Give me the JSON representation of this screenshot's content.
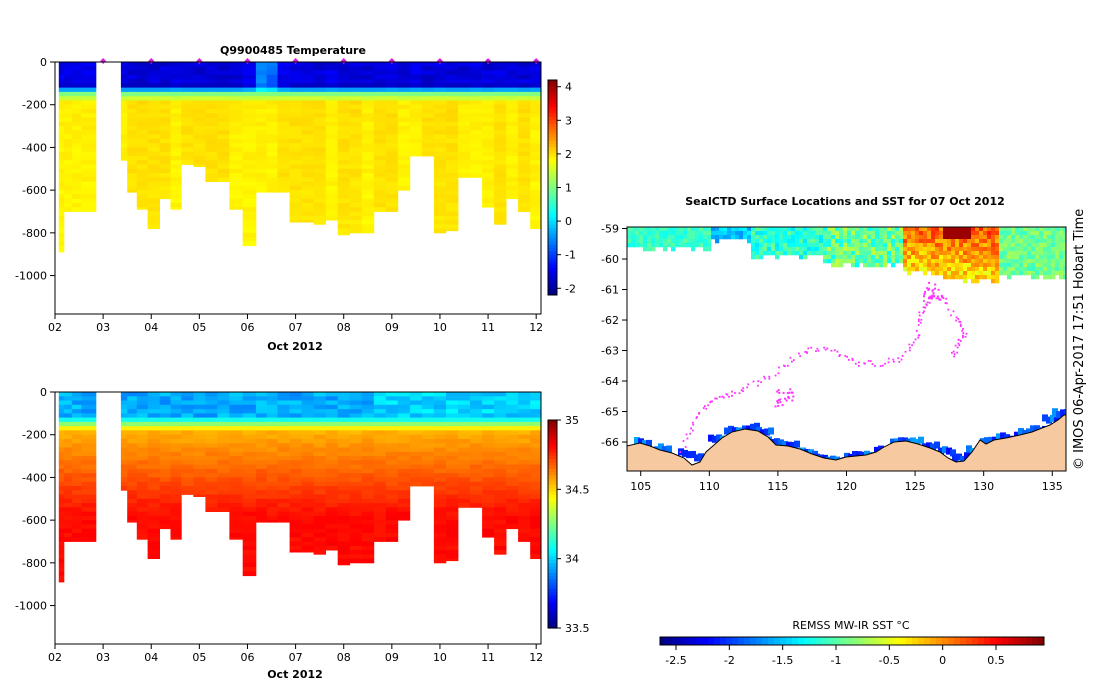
{
  "chart_data": [
    {
      "type": "heatmap",
      "title": "Q9900485  Temperature",
      "xlabel": "Oct 2012",
      "ylabel": "",
      "x_ticks": [
        "02",
        "03",
        "04",
        "05",
        "06",
        "07",
        "08",
        "09",
        "10",
        "11",
        "12"
      ],
      "x_range": [
        2.0,
        12.1
      ],
      "y_ticks": [
        0,
        -200,
        -400,
        -600,
        -800,
        -1000
      ],
      "y_range": [
        -1180,
        0
      ],
      "colorbar": {
        "min": -2.2,
        "max": 4.2,
        "ticks": [
          4,
          3,
          2,
          1,
          0,
          -1,
          -2
        ],
        "labels": [
          "4",
          "3",
          "2",
          "1",
          "0",
          "-1",
          "-2"
        ]
      },
      "profiles": [
        {
          "x": 2.12,
          "bottom": -890,
          "surface": -1.7,
          "deep": 1.9
        },
        {
          "x": 2.25,
          "bottom": -700,
          "surface": -1.7,
          "deep": 1.9
        },
        {
          "x": 2.45,
          "bottom": -700,
          "surface": -1.7,
          "deep": 1.9
        },
        {
          "x": 2.65,
          "bottom": -700,
          "surface": -1.7,
          "deep": 1.9
        },
        {
          "x": 3.4,
          "bottom": -460,
          "surface": -1.8,
          "deep": 1.9
        },
        {
          "x": 3.6,
          "bottom": -610,
          "surface": -1.8,
          "deep": 2.0
        },
        {
          "x": 3.8,
          "bottom": -690,
          "surface": -1.8,
          "deep": 2.0
        },
        {
          "x": 4.05,
          "bottom": -780,
          "surface": -1.8,
          "deep": 2.0
        },
        {
          "x": 4.3,
          "bottom": -640,
          "surface": -1.8,
          "deep": 2.0
        },
        {
          "x": 4.5,
          "bottom": -690,
          "surface": -1.7,
          "deep": 1.9
        },
        {
          "x": 4.75,
          "bottom": -480,
          "surface": -1.8,
          "deep": 2.0
        },
        {
          "x": 5.0,
          "bottom": -490,
          "surface": -1.8,
          "deep": 2.0
        },
        {
          "x": 5.25,
          "bottom": -560,
          "surface": -1.8,
          "deep": 2.0
        },
        {
          "x": 5.5,
          "bottom": -560,
          "surface": -1.8,
          "deep": 2.0
        },
        {
          "x": 5.75,
          "bottom": -690,
          "surface": -1.8,
          "deep": 1.9
        },
        {
          "x": 6.05,
          "bottom": -860,
          "surface": -1.6,
          "deep": 1.9
        },
        {
          "x": 6.3,
          "bottom": -610,
          "surface": -0.7,
          "deep": 1.9
        },
        {
          "x": 6.5,
          "bottom": -610,
          "surface": -0.9,
          "deep": 1.9
        },
        {
          "x": 6.75,
          "bottom": -610,
          "surface": -1.6,
          "deep": 2.0
        },
        {
          "x": 7.0,
          "bottom": -750,
          "surface": -1.8,
          "deep": 2.0
        },
        {
          "x": 7.25,
          "bottom": -750,
          "surface": -1.8,
          "deep": 2.0
        },
        {
          "x": 7.5,
          "bottom": -760,
          "surface": -1.8,
          "deep": 2.0
        },
        {
          "x": 7.75,
          "bottom": -740,
          "surface": -1.7,
          "deep": 1.9
        },
        {
          "x": 8.0,
          "bottom": -810,
          "surface": -1.8,
          "deep": 2.0
        },
        {
          "x": 8.25,
          "bottom": -800,
          "surface": -1.8,
          "deep": 2.0
        },
        {
          "x": 8.5,
          "bottom": -800,
          "surface": -1.8,
          "deep": 1.9
        },
        {
          "x": 8.75,
          "bottom": -700,
          "surface": -1.8,
          "deep": 2.0
        },
        {
          "x": 9.0,
          "bottom": -700,
          "surface": -1.7,
          "deep": 2.0
        },
        {
          "x": 9.25,
          "bottom": -600,
          "surface": -1.8,
          "deep": 1.9
        },
        {
          "x": 9.5,
          "bottom": -440,
          "surface": -1.7,
          "deep": 1.9
        },
        {
          "x": 9.75,
          "bottom": -440,
          "surface": -1.8,
          "deep": 2.0
        },
        {
          "x": 10.0,
          "bottom": -800,
          "surface": -1.7,
          "deep": 2.0
        },
        {
          "x": 10.25,
          "bottom": -790,
          "surface": -1.8,
          "deep": 2.0
        },
        {
          "x": 10.5,
          "bottom": -540,
          "surface": -1.8,
          "deep": 1.9
        },
        {
          "x": 10.75,
          "bottom": -540,
          "surface": -1.7,
          "deep": 1.9
        },
        {
          "x": 11.0,
          "bottom": -680,
          "surface": -1.8,
          "deep": 1.9
        },
        {
          "x": 11.25,
          "bottom": -760,
          "surface": -1.7,
          "deep": 2.0
        },
        {
          "x": 11.5,
          "bottom": -640,
          "surface": -1.7,
          "deep": 1.9
        },
        {
          "x": 11.75,
          "bottom": -700,
          "surface": -1.8,
          "deep": 2.0
        },
        {
          "x": 12.0,
          "bottom": -780,
          "surface": -1.7,
          "deep": 1.9
        }
      ],
      "surface_markers": [
        3.0,
        4.0,
        5.0,
        6.0,
        7.0,
        8.0,
        9.0,
        10.0,
        11.0,
        12.0
      ]
    },
    {
      "type": "heatmap",
      "title": "",
      "xlabel": "Oct 2012",
      "ylabel": "",
      "x_ticks": [
        "02",
        "03",
        "04",
        "05",
        "06",
        "07",
        "08",
        "09",
        "10",
        "11",
        "12"
      ],
      "x_range": [
        2.0,
        12.1
      ],
      "y_ticks": [
        0,
        -200,
        -400,
        -600,
        -800,
        -1000
      ],
      "y_range": [
        -1180,
        0
      ],
      "colorbar": {
        "min": 33.5,
        "max": 35.0,
        "ticks": [
          35,
          34.5,
          34,
          33.5
        ],
        "labels": [
          "35",
          "34.5",
          "34",
          "33.5"
        ]
      },
      "profiles_ref": "same casts as temperature section",
      "surface_value": 33.95,
      "deep_value": 34.72
    },
    {
      "type": "heatmap",
      "title": "SealCTD Surface Locations and SST for 07 Oct 2012",
      "xlabel": "",
      "ylabel": "",
      "x_ticks": [
        "105",
        "110",
        "115",
        "120",
        "125",
        "130",
        "135"
      ],
      "x_range": [
        104,
        136
      ],
      "y_ticks": [
        "-59",
        "-60",
        "-61",
        "-62",
        "-63",
        "-64",
        "-65",
        "-66"
      ],
      "y_range": [
        -66.95,
        -58.95
      ],
      "colorbar": {
        "title": "REMSS MW-IR SST °C",
        "min": -2.65,
        "max": 0.95,
        "ticks": [
          -2.5,
          -2,
          -1.5,
          -1,
          -0.5,
          0,
          0.5
        ],
        "labels": [
          "-2.5",
          "-2",
          "-1.5",
          "-1",
          "-0.5",
          "0",
          "0.5"
        ]
      },
      "seal_track": [
        [
          108.0,
          -66.2
        ],
        [
          108.8,
          -65.4
        ],
        [
          109.6,
          -64.8
        ],
        [
          110.8,
          -64.5
        ],
        [
          112.0,
          -64.3
        ],
        [
          113.5,
          -64.0
        ],
        [
          115.0,
          -63.6
        ],
        [
          116.6,
          -63.1
        ],
        [
          118.0,
          -62.9
        ],
        [
          119.5,
          -63.1
        ],
        [
          121.0,
          -63.4
        ],
        [
          122.5,
          -63.4
        ],
        [
          124.0,
          -63.2
        ],
        [
          125.0,
          -62.6
        ],
        [
          125.3,
          -62.0
        ],
        [
          125.6,
          -61.5
        ],
        [
          126.2,
          -61.2
        ],
        [
          127.2,
          -61.3
        ],
        [
          128.0,
          -62.0
        ],
        [
          128.6,
          -62.4
        ],
        [
          128.0,
          -62.8
        ],
        [
          127.6,
          -63.2
        ]
      ]
    }
  ],
  "footer": {
    "credit": "© IMOS 06-Apr-2017 17:51 Hobart Time"
  },
  "colors": {
    "land": "#f7c9a0",
    "track": "#ff33ff",
    "marker": "#dd22dd"
  }
}
